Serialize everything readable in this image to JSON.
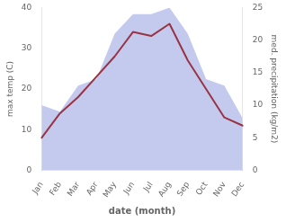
{
  "chart_data": {
    "type": "line",
    "categories": [
      "Jan",
      "Feb",
      "Mar",
      "Apr",
      "May",
      "Jun",
      "Jul",
      "Aug",
      "Sep",
      "Oct",
      "Nov",
      "Dec"
    ],
    "series": [
      {
        "type": "line",
        "color": "#993344",
        "values": [
          8,
          14,
          18,
          23,
          28,
          34,
          33,
          36,
          27,
          20,
          13,
          11
        ]
      },
      {
        "type": "area",
        "color": "#b0b8e8",
        "axis": "y2",
        "values": [
          10,
          9,
          13,
          14,
          21,
          24,
          24,
          25,
          21,
          14,
          13,
          8
        ]
      }
    ],
    "xlabel": "date (month)",
    "ylabel": "max temp (C)",
    "y2label": "med. precipitation (kg/m2)",
    "ylim": [
      0,
      40
    ],
    "yticks": [
      0,
      10,
      20,
      30,
      40
    ],
    "y2lim": [
      0,
      25
    ],
    "y2ticks": [
      0,
      5,
      10,
      15,
      20,
      25
    ],
    "grid": false
  }
}
